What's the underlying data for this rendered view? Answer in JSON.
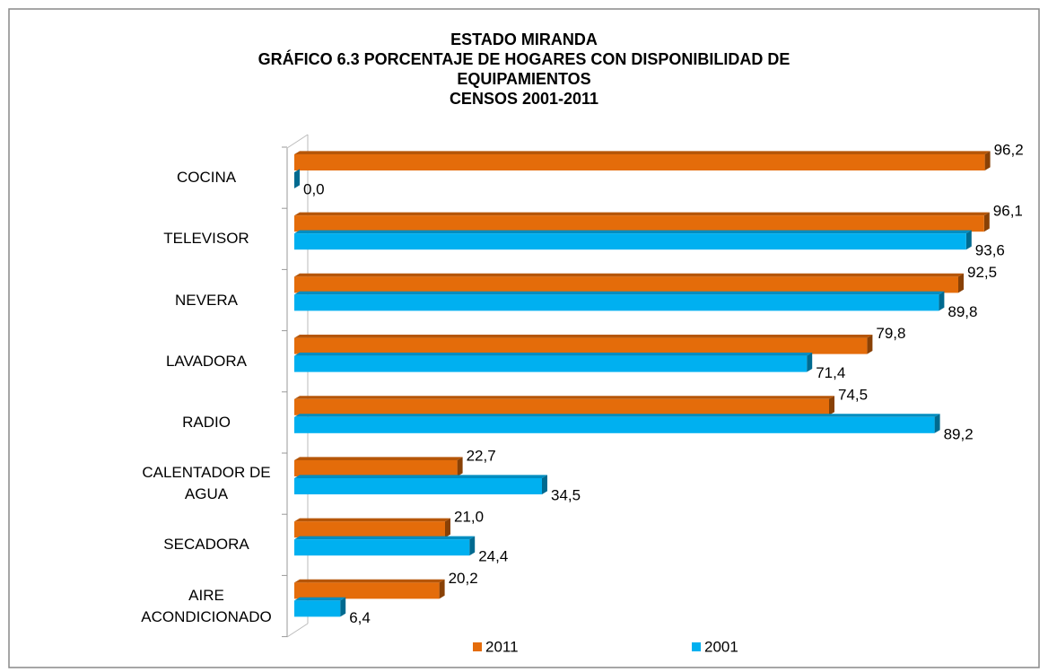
{
  "chart_data": {
    "type": "bar",
    "orientation": "horizontal",
    "title": [
      "ESTADO MIRANDA",
      "GRÁFICO 6.3 PORCENTAJE DE HOGARES CON DISPONIBILIDAD  DE",
      "EQUIPAMIENTOS",
      "CENSOS 2001-2011"
    ],
    "categories": [
      "COCINA",
      "TELEVISOR",
      "NEVERA",
      "LAVADORA",
      "RADIO",
      "CALENTADOR DE AGUA",
      "SECADORA",
      "AIRE ACONDICIONADO"
    ],
    "series": [
      {
        "name": "2011",
        "color": "#e46c0a",
        "values": [
          96.2,
          96.1,
          92.5,
          79.8,
          74.5,
          22.7,
          21.0,
          20.2
        ],
        "value_labels": [
          "96,2",
          "96,1",
          "92,5",
          "79,8",
          "74,5",
          "22,7",
          "21,0",
          "20,2"
        ]
      },
      {
        "name": "2001",
        "color": "#00b0f0",
        "values": [
          0.0,
          93.6,
          89.8,
          71.4,
          89.2,
          34.5,
          24.4,
          6.4
        ],
        "value_labels": [
          "0,0",
          "93,6",
          "89,8",
          "71,4",
          "89,2",
          "34,5",
          "24,4",
          "6,4"
        ]
      }
    ],
    "xlim": [
      0,
      100
    ],
    "legend": "bottom"
  }
}
